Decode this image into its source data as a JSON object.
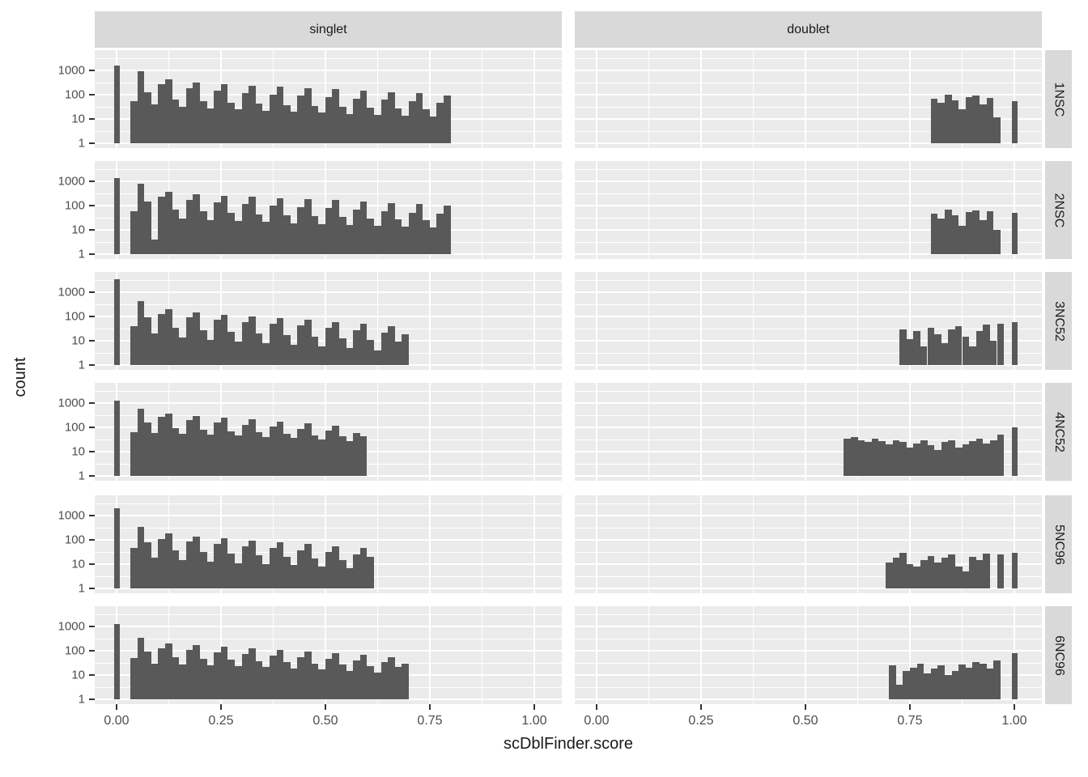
{
  "chart_data": {
    "type": "bar",
    "subtype": "faceted-histogram-log-y",
    "title": "",
    "xlabel": "scDblFinder.score",
    "ylabel": "count",
    "col_facets": [
      "singlet",
      "doublet"
    ],
    "row_facets": [
      "1NSC",
      "2NSC",
      "3NC52",
      "4NC52",
      "5NC96",
      "6NC96"
    ],
    "x_tick_labels": [
      "0.00",
      "0.25",
      "0.50",
      "0.75",
      "1.00"
    ],
    "x_tick_values": [
      0,
      0.25,
      0.5,
      0.75,
      1.0
    ],
    "y_tick_labels": [
      "1000",
      "100",
      "10",
      "1"
    ],
    "y_tick_values": [
      1000,
      100,
      10,
      1
    ],
    "y_scale": "log10",
    "xlim": [
      -0.05,
      1.06
    ],
    "ylim": [
      1,
      6000
    ],
    "grid": "white-on-grey",
    "legend": "none",
    "binwidth": 0.016667,
    "panels": [
      {
        "row": "1NSC",
        "col": "singlet",
        "spike": {
          "x": 0,
          "count": 1600
        },
        "bins_start": 0.033,
        "counts": [
          55,
          950,
          130,
          40,
          270,
          430,
          65,
          32,
          190,
          320,
          55,
          28,
          150,
          270,
          48,
          25,
          120,
          240,
          42,
          22,
          100,
          210,
          38,
          20,
          90,
          190,
          35,
          18,
          80,
          170,
          32,
          16,
          70,
          150,
          30,
          15,
          62,
          130,
          28,
          14,
          55,
          115,
          26,
          13,
          48,
          95
        ]
      },
      {
        "row": "1NSC",
        "col": "doublet",
        "spike": {
          "x": 1,
          "count": 55
        },
        "bins_start": 0.8,
        "counts": [
          70,
          45,
          100,
          60,
          25,
          80,
          95,
          40,
          75,
          12
        ]
      },
      {
        "row": "2NSC",
        "col": "singlet",
        "spike": {
          "x": 0,
          "count": 1400
        },
        "bins_start": 0.033,
        "counts": [
          60,
          800,
          150,
          4,
          230,
          380,
          70,
          30,
          170,
          300,
          60,
          26,
          140,
          260,
          50,
          24,
          115,
          230,
          44,
          21,
          100,
          200,
          40,
          19,
          88,
          180,
          36,
          17,
          78,
          165,
          33,
          16,
          68,
          145,
          30,
          15,
          60,
          130,
          28,
          14,
          52,
          115,
          26,
          13,
          46,
          100
        ]
      },
      {
        "row": "2NSC",
        "col": "doublet",
        "spike": {
          "x": 1,
          "count": 50
        },
        "bins_start": 0.8,
        "counts": [
          45,
          30,
          70,
          40,
          15,
          55,
          65,
          25,
          60,
          10
        ]
      },
      {
        "row": "3NC52",
        "col": "singlet",
        "spike": {
          "x": 0,
          "count": 3500
        },
        "bins_start": 0.033,
        "counts": [
          40,
          420,
          90,
          20,
          130,
          200,
          35,
          14,
          95,
          150,
          28,
          11,
          75,
          120,
          24,
          9,
          60,
          100,
          20,
          8,
          50,
          85,
          17,
          7,
          42,
          72,
          15,
          6,
          35,
          60,
          13,
          5,
          28,
          50,
          11,
          4,
          22,
          40,
          9,
          18
        ]
      },
      {
        "row": "3NC52",
        "col": "doublet",
        "spike": {
          "x": 1,
          "count": 60
        },
        "bins_start": 0.725,
        "counts": [
          30,
          12,
          25,
          6,
          35,
          18,
          8,
          30,
          40,
          15,
          6,
          25,
          45,
          10,
          50
        ]
      },
      {
        "row": "4NC52",
        "col": "singlet",
        "spike": {
          "x": 0,
          "count": 1300
        },
        "bins_start": 0.033,
        "counts": [
          65,
          600,
          160,
          60,
          280,
          380,
          90,
          55,
          200,
          300,
          80,
          50,
          160,
          250,
          70,
          45,
          130,
          210,
          62,
          40,
          105,
          175,
          55,
          36,
          88,
          145,
          48,
          32,
          72,
          115,
          42,
          28,
          58,
          42
        ]
      },
      {
        "row": "4NC52",
        "col": "doublet",
        "spike": {
          "x": 1,
          "count": 100
        },
        "bins_start": 0.592,
        "counts": [
          35,
          40,
          30,
          25,
          35,
          28,
          20,
          30,
          25,
          15,
          22,
          30,
          18,
          12,
          25,
          30,
          15,
          20,
          28,
          35,
          22,
          30,
          50
        ]
      },
      {
        "row": "5NC96",
        "col": "singlet",
        "spike": {
          "x": 0,
          "count": 2000
        },
        "bins_start": 0.033,
        "counts": [
          45,
          350,
          80,
          18,
          110,
          180,
          38,
          15,
          85,
          140,
          32,
          13,
          68,
          115,
          27,
          11,
          55,
          95,
          23,
          10,
          46,
          80,
          20,
          9,
          38,
          66,
          17,
          8,
          32,
          55,
          15,
          7,
          26,
          45,
          20
        ]
      },
      {
        "row": "5NC96",
        "col": "doublet",
        "spike": {
          "x": 1,
          "count": 30
        },
        "bins_start": 0.692,
        "counts": [
          12,
          18,
          30,
          10,
          8,
          15,
          22,
          12,
          18,
          25,
          8,
          5,
          20,
          15,
          28,
          0,
          25
        ]
      },
      {
        "row": "6NC96",
        "col": "singlet",
        "spike": {
          "x": 0,
          "count": 1300
        },
        "bins_start": 0.033,
        "counts": [
          50,
          330,
          90,
          30,
          130,
          200,
          55,
          28,
          105,
          170,
          48,
          25,
          88,
          145,
          42,
          23,
          75,
          125,
          38,
          21,
          64,
          108,
          34,
          19,
          55,
          92,
          30,
          17,
          48,
          78,
          27,
          15,
          41,
          66,
          24,
          13,
          35,
          56,
          21,
          30
        ]
      },
      {
        "row": "6NC96",
        "col": "doublet",
        "spike": {
          "x": 1,
          "count": 80
        },
        "bins_start": 0.7,
        "counts": [
          25,
          4,
          15,
          20,
          30,
          12,
          18,
          25,
          10,
          15,
          28,
          20,
          35,
          30,
          18,
          40
        ]
      }
    ],
    "colors": {
      "bar": "#595959",
      "panel_bg": "#EBEBEB",
      "strip_bg": "#D9D9D9",
      "grid": "#FFFFFF",
      "axis_text": "#4D4D4D",
      "title_text": "#1A1A1A",
      "tick_mark": "#333333"
    }
  }
}
